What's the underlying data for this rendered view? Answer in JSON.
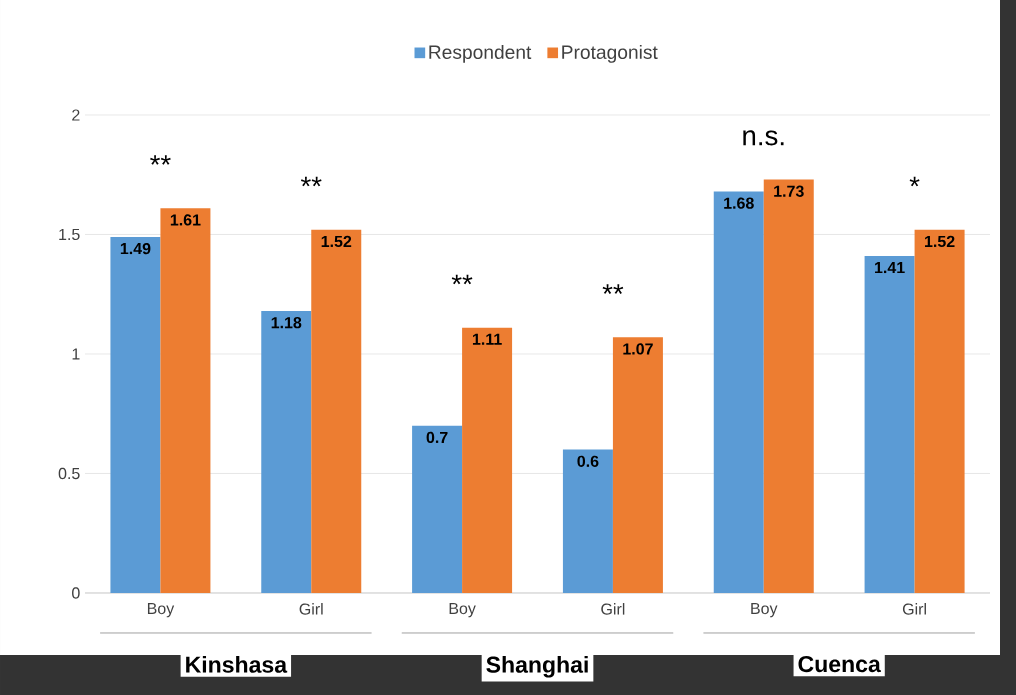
{
  "chart_data": {
    "type": "bar",
    "categories": [
      "Boy",
      "Girl",
      "Boy",
      "Girl",
      "Boy",
      "Girl"
    ],
    "series": [
      {
        "name": "Respondent",
        "color": "#5b9bd5",
        "values": [
          1.49,
          1.18,
          0.7,
          0.6,
          1.68,
          1.41
        ]
      },
      {
        "name": "Protagonist",
        "color": "#ed7d31",
        "values": [
          1.61,
          1.52,
          1.11,
          1.07,
          1.73,
          1.52
        ]
      }
    ],
    "ylim": [
      0,
      2
    ],
    "yticks": [
      0,
      0.5,
      1,
      1.5,
      2
    ],
    "grid": "y",
    "legend": "top",
    "data_labels": true,
    "annotations": [
      "**",
      "**",
      "**",
      "**",
      "n.s.",
      "*",
      "Kinshasa",
      "Shanghai",
      "Cuenca"
    ]
  }
}
